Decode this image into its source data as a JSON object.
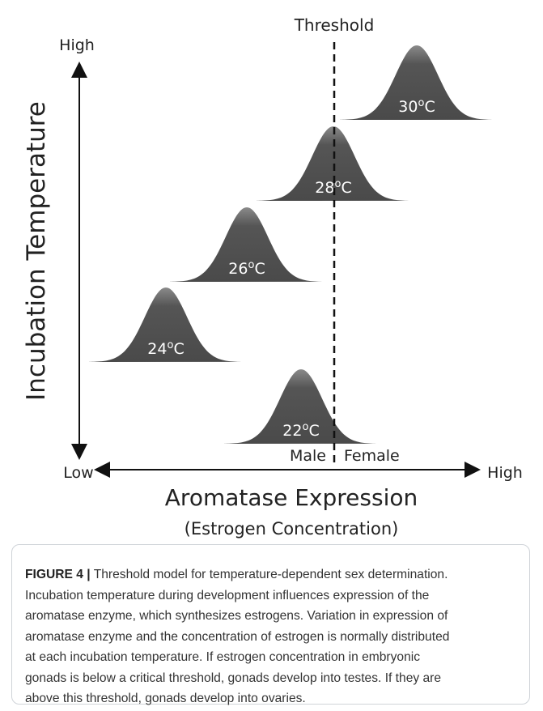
{
  "figure": {
    "threshold": "Threshold",
    "y_axis": {
      "label": "Incubation Temperature",
      "high": "High",
      "low": "Low"
    },
    "x_axis": {
      "label": "Aromatase Expression",
      "sublabel": "(Estrogen Concentration)",
      "low": "Low",
      "high": "High"
    },
    "regions": {
      "left": "Male",
      "right": "Female"
    },
    "curves": [
      {
        "value": "30",
        "sup": "o",
        "unit": "C"
      },
      {
        "value": "28",
        "sup": "o",
        "unit": "C"
      },
      {
        "value": "26",
        "sup": "o",
        "unit": "C"
      },
      {
        "value": "24",
        "sup": "o",
        "unit": "C"
      },
      {
        "value": "22",
        "sup": "o",
        "unit": "C"
      }
    ]
  },
  "caption": {
    "label": "FIGURE 4",
    "separator": "|",
    "lines": [
      "Threshold model for temperature-dependent sex determination.",
      "Incubation temperature during development influences expression of the",
      "aromatase enzyme, which synthesizes estrogens. Variation in expression of",
      "aromatase enzyme and the concentration of estrogen is normally distributed",
      "at each incubation temperature. If estrogen concentration in embryonic",
      "gonads is below a critical threshold, gonads develop into testes. If they are",
      "above this threshold, gonads develop into ovaries."
    ]
  }
}
